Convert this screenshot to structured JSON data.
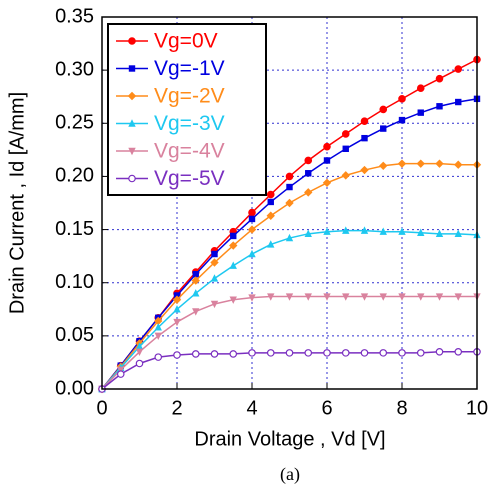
{
  "chart_data": {
    "type": "line",
    "x_label": "Drain Voltage , Vd [V]",
    "y_label": "Drain Current , Id  [A/mm]",
    "caption": "(a)",
    "x": [
      0,
      0.5,
      1,
      1.5,
      2,
      2.5,
      3,
      3.5,
      4,
      4.5,
      5,
      5.5,
      6,
      6.5,
      7,
      7.5,
      8,
      8.5,
      9,
      9.5,
      10
    ],
    "series": [
      {
        "name": "Vg=0V",
        "color": "#ff0000",
        "marker": "circle",
        "values": [
          0,
          0.022,
          0.045,
          0.067,
          0.09,
          0.11,
          0.13,
          0.148,
          0.166,
          0.183,
          0.2,
          0.215,
          0.228,
          0.24,
          0.252,
          0.263,
          0.273,
          0.283,
          0.292,
          0.301,
          0.31
        ]
      },
      {
        "name": "Vg=-1V",
        "color": "#0000e0",
        "marker": "square",
        "values": [
          0,
          0.022,
          0.045,
          0.067,
          0.088,
          0.108,
          0.127,
          0.144,
          0.16,
          0.176,
          0.19,
          0.203,
          0.215,
          0.226,
          0.236,
          0.245,
          0.253,
          0.26,
          0.266,
          0.27,
          0.273
        ]
      },
      {
        "name": "Vg=-2V",
        "color": "#ff8c1a",
        "marker": "diamond",
        "values": [
          0,
          0.021,
          0.043,
          0.064,
          0.084,
          0.102,
          0.119,
          0.135,
          0.15,
          0.163,
          0.175,
          0.185,
          0.194,
          0.201,
          0.206,
          0.21,
          0.212,
          0.212,
          0.212,
          0.211,
          0.211
        ]
      },
      {
        "name": "Vg=-3V",
        "color": "#1ec8f0",
        "marker": "triangle",
        "values": [
          0,
          0.02,
          0.04,
          0.058,
          0.075,
          0.09,
          0.104,
          0.116,
          0.127,
          0.136,
          0.142,
          0.146,
          0.148,
          0.149,
          0.149,
          0.148,
          0.148,
          0.147,
          0.146,
          0.146,
          0.145
        ]
      },
      {
        "name": "Vg=-4V",
        "color": "#d9829e",
        "marker": "triangle-down",
        "values": [
          0,
          0.018,
          0.035,
          0.05,
          0.063,
          0.073,
          0.08,
          0.084,
          0.086,
          0.087,
          0.087,
          0.087,
          0.087,
          0.087,
          0.087,
          0.087,
          0.087,
          0.087,
          0.087,
          0.087,
          0.087
        ]
      },
      {
        "name": "Vg=-5V",
        "color": "#7a2fc0",
        "marker": "circle-open",
        "values": [
          0,
          0.014,
          0.024,
          0.03,
          0.032,
          0.033,
          0.033,
          0.033,
          0.034,
          0.034,
          0.034,
          0.034,
          0.034,
          0.034,
          0.034,
          0.034,
          0.034,
          0.034,
          0.035,
          0.035,
          0.035
        ]
      }
    ],
    "xlim": [
      0,
      10
    ],
    "xticks": [
      0,
      2,
      4,
      6,
      8,
      10
    ],
    "ylim": [
      0,
      0.35
    ],
    "yticks": [
      {
        "value": 0,
        "label": "0.00"
      },
      {
        "value": 0.05,
        "label": "0.05"
      },
      {
        "value": 0.1,
        "label": "0.10"
      },
      {
        "value": 0.15,
        "label": "0.15"
      },
      {
        "value": 0.2,
        "label": "0.20"
      },
      {
        "value": 0.25,
        "label": "0.25"
      },
      {
        "value": 0.3,
        "label": "0.30"
      },
      {
        "value": 0.35,
        "label": "0.35"
      }
    ],
    "grid": true,
    "legend": "top-left"
  }
}
